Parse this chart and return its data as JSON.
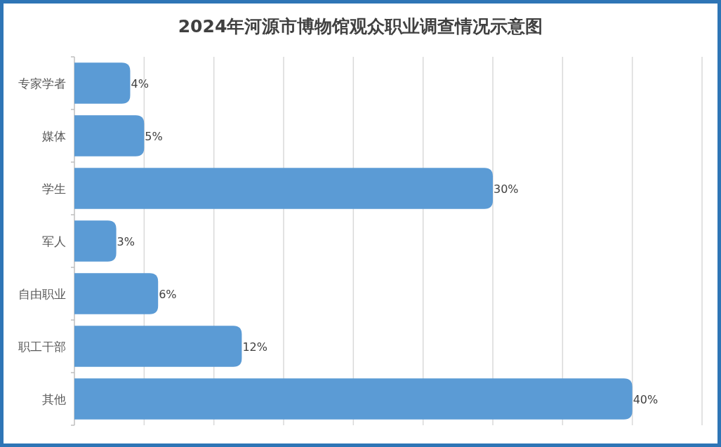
{
  "chart_data": {
    "type": "bar",
    "orientation": "horizontal",
    "title": "2024年河源市博物馆观众职业调查情况示意图",
    "categories": [
      "专家学者",
      "媒体",
      "学生",
      "军人",
      "自由职业",
      "职工干部",
      "其他"
    ],
    "values": [
      4,
      5,
      30,
      3,
      6,
      12,
      40
    ],
    "value_labels": [
      "4%",
      "5%",
      "30%",
      "3%",
      "6%",
      "12%",
      "40%"
    ],
    "color": "#5b9bd5",
    "xlim": [
      0,
      45
    ],
    "xticks": [
      {
        "value": 0,
        "label": null
      },
      {
        "value": 5,
        "label": null
      },
      {
        "value": 10,
        "label": null
      },
      {
        "value": 15,
        "label": null
      },
      {
        "value": 20,
        "label": null
      },
      {
        "value": 25,
        "label": null
      },
      {
        "value": 30,
        "label": null
      },
      {
        "value": 35,
        "label": null
      },
      {
        "value": 40,
        "label": null
      },
      {
        "value": 45,
        "label": null
      }
    ],
    "grid": "x",
    "tick_labels": "y"
  }
}
